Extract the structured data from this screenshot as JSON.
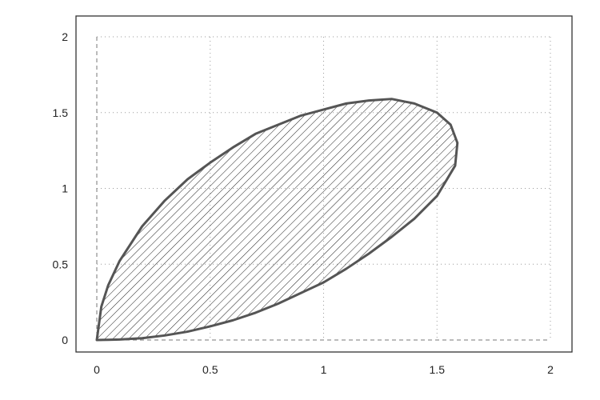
{
  "chart_data": {
    "type": "area",
    "title": "",
    "xlabel": "",
    "ylabel": "",
    "xlim": [
      0,
      2
    ],
    "ylim": [
      0,
      2
    ],
    "x_ticks": [
      "0",
      "0.5",
      "1",
      "1.5",
      "2"
    ],
    "y_ticks": [
      "0",
      "0.5",
      "1",
      "1.5",
      "2"
    ],
    "x_tick_values": [
      0,
      0.5,
      1,
      1.5,
      2
    ],
    "y_tick_values": [
      0,
      0.5,
      1,
      1.5,
      2
    ],
    "grid": true,
    "fill": "diagonal-hatch",
    "reference_lines": [
      {
        "axis": "x",
        "value": 0,
        "style": "dashed"
      },
      {
        "axis": "y",
        "value": 0,
        "style": "dashed"
      }
    ],
    "series": [
      {
        "upper_boundary": [
          [
            0,
            0
          ],
          [
            0.02,
            0.22
          ],
          [
            0.05,
            0.36
          ],
          [
            0.1,
            0.52
          ],
          [
            0.2,
            0.75
          ],
          [
            0.3,
            0.92
          ],
          [
            0.4,
            1.06
          ],
          [
            0.5,
            1.17
          ],
          [
            0.6,
            1.27
          ],
          [
            0.7,
            1.36
          ],
          [
            0.8,
            1.42
          ],
          [
            0.9,
            1.48
          ],
          [
            1.0,
            1.52
          ],
          [
            1.1,
            1.56
          ],
          [
            1.2,
            1.58
          ],
          [
            1.3,
            1.59
          ],
          [
            1.4,
            1.56
          ],
          [
            1.5,
            1.5
          ],
          [
            1.56,
            1.42
          ],
          [
            1.59,
            1.3
          ],
          [
            1.58,
            1.15
          ]
        ],
        "lower_boundary": [
          [
            1.58,
            1.15
          ],
          [
            1.5,
            0.95
          ],
          [
            1.4,
            0.8
          ],
          [
            1.3,
            0.68
          ],
          [
            1.2,
            0.57
          ],
          [
            1.1,
            0.47
          ],
          [
            1.0,
            0.38
          ],
          [
            0.9,
            0.31
          ],
          [
            0.8,
            0.24
          ],
          [
            0.7,
            0.18
          ],
          [
            0.6,
            0.13
          ],
          [
            0.5,
            0.09
          ],
          [
            0.4,
            0.055
          ],
          [
            0.3,
            0.03
          ],
          [
            0.2,
            0.012
          ],
          [
            0.1,
            0.003
          ],
          [
            0.05,
            0.001
          ],
          [
            0,
            0
          ]
        ]
      }
    ]
  },
  "colors": {
    "outline": "#555555",
    "hatch": "#222222",
    "grid": "#9a9a9a",
    "frame": "#333333"
  }
}
